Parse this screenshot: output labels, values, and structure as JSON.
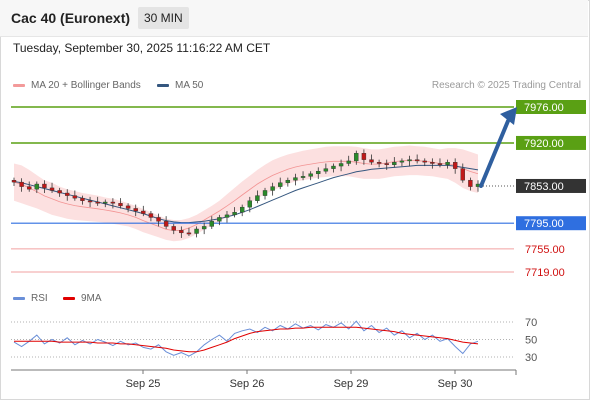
{
  "header": {
    "title": "Cac 40 (Euronext)",
    "timeframe": "30 MIN"
  },
  "datetime": "Tuesday, September 30, 2025 11:16:22 AM CET",
  "legend": {
    "bb_label": "MA 20 + Bollinger Bands",
    "ma50_label": "MA 50",
    "rsi_label": "RSI",
    "rsi_ma_label": "9MA"
  },
  "credit": "Research © 2025 Trading Central",
  "colors": {
    "resistance": "#5aa014",
    "support": "#2f6fe0",
    "ma": "#f08080",
    "ma50": "#35577f",
    "rsi": "#6a8fd8",
    "rsi_ma": "#e00000",
    "arrow": "#2f5f9f",
    "current": "#333333"
  },
  "chart_data": [
    {
      "type": "candlestick",
      "x_tick_labels": [
        "Sep 25",
        "Sep 26",
        "Sep 29",
        "Sep 30"
      ],
      "levels": [
        {
          "value": 7976.0,
          "label": "7976.00",
          "kind": "resistance"
        },
        {
          "value": 7920.0,
          "label": "7920.00",
          "kind": "resistance"
        },
        {
          "value": 7853.0,
          "label": "7853.00",
          "kind": "current"
        },
        {
          "value": 7795.0,
          "label": "7795.00",
          "kind": "support"
        },
        {
          "value": 7755.0,
          "label": "7755.00",
          "kind": "minor"
        },
        {
          "value": 7719.0,
          "label": "7719.00",
          "kind": "minor"
        }
      ],
      "ylim": [
        7719,
        7976
      ],
      "close_series": [
        7859,
        7852,
        7848,
        7856,
        7850,
        7846,
        7842,
        7838,
        7834,
        7830,
        7828,
        7826,
        7828,
        7826,
        7822,
        7818,
        7814,
        7810,
        7804,
        7798,
        7790,
        7784,
        7780,
        7779,
        7786,
        7790,
        7798,
        7804,
        7808,
        7812,
        7820,
        7830,
        7838,
        7846,
        7852,
        7858,
        7862,
        7866,
        7868,
        7872,
        7876,
        7880,
        7884,
        7888,
        7892,
        7904,
        7894,
        7890,
        7888,
        7886,
        7890,
        7892,
        7894,
        7892,
        7890,
        7888,
        7886,
        7890,
        7880,
        7862,
        7852,
        7856
      ],
      "projection": {
        "from": 7853,
        "to": 7976
      },
      "bollinger": {
        "upper": [
          7888,
          7885,
          7878,
          7870,
          7862,
          7858,
          7852,
          7848,
          7845,
          7842,
          7840,
          7838,
          7835,
          7833,
          7830,
          7826,
          7822,
          7817,
          7812,
          7807,
          7802,
          7800,
          7800,
          7803,
          7808,
          7815,
          7822,
          7830,
          7840,
          7850,
          7860,
          7869,
          7878,
          7886,
          7893,
          7898,
          7902,
          7905,
          7908,
          7910,
          7912,
          7914,
          7915,
          7915,
          7915,
          7914,
          7912,
          7910,
          7910,
          7912,
          7914,
          7915,
          7916,
          7915,
          7914,
          7912,
          7910,
          7912,
          7912,
          7910,
          7906,
          7902
        ],
        "lower": [
          7830,
          7826,
          7822,
          7818,
          7813,
          7808,
          7805,
          7802,
          7800,
          7799,
          7798,
          7797,
          7796,
          7794,
          7792,
          7790,
          7786,
          7781,
          7777,
          7773,
          7769,
          7767,
          7768,
          7772,
          7778,
          7785,
          7792,
          7798,
          7804,
          7810,
          7818,
          7826,
          7834,
          7840,
          7846,
          7851,
          7856,
          7860,
          7862,
          7864,
          7866,
          7867,
          7868,
          7868,
          7868,
          7866,
          7864,
          7864,
          7864,
          7866,
          7868,
          7869,
          7870,
          7870,
          7869,
          7868,
          7866,
          7864,
          7858,
          7850,
          7845,
          7842
        ]
      },
      "ma50": [
        7860,
        7858,
        7855,
        7852,
        7849,
        7846,
        7843,
        7840,
        7837,
        7834,
        7831,
        7828,
        7825,
        7822,
        7819,
        7816,
        7813,
        7810,
        7806,
        7802,
        7799,
        7797,
        7796,
        7796,
        7797,
        7798,
        7800,
        7802,
        7805,
        7808,
        7812,
        7816,
        7821,
        7826,
        7831,
        7836,
        7841,
        7846,
        7850,
        7854,
        7858,
        7862,
        7866,
        7869,
        7872,
        7875,
        7877,
        7879,
        7880,
        7881,
        7882,
        7883,
        7884,
        7885,
        7885,
        7885,
        7885,
        7885,
        7884,
        7882,
        7880,
        7878
      ]
    },
    {
      "type": "line",
      "name_label": "RSI",
      "y_tick_labels": [
        "70",
        "50",
        "30"
      ],
      "ylim": [
        20,
        80
      ],
      "rsi": [
        47,
        42,
        48,
        55,
        45,
        50,
        46,
        52,
        44,
        49,
        45,
        50,
        47,
        43,
        48,
        44,
        46,
        41,
        39,
        44,
        36,
        32,
        35,
        31,
        36,
        44,
        50,
        55,
        48,
        57,
        60,
        62,
        58,
        64,
        60,
        66,
        62,
        68,
        63,
        66,
        61,
        67,
        64,
        69,
        62,
        71,
        60,
        66,
        58,
        63,
        55,
        60,
        52,
        57,
        50,
        55,
        48,
        51,
        42,
        34,
        45,
        48
      ],
      "rsi_ma": [
        48,
        48,
        48,
        48,
        48,
        48,
        47,
        47,
        47,
        47,
        47,
        46,
        46,
        46,
        45,
        45,
        44,
        43,
        42,
        41,
        40,
        38,
        37,
        36,
        36,
        38,
        41,
        44,
        47,
        51,
        54,
        57,
        59,
        60,
        61,
        62,
        62,
        63,
        63,
        64,
        64,
        64,
        64,
        64,
        64,
        64,
        63,
        62,
        61,
        60,
        59,
        57,
        56,
        55,
        54,
        53,
        52,
        51,
        49,
        47,
        46,
        45
      ]
    }
  ]
}
